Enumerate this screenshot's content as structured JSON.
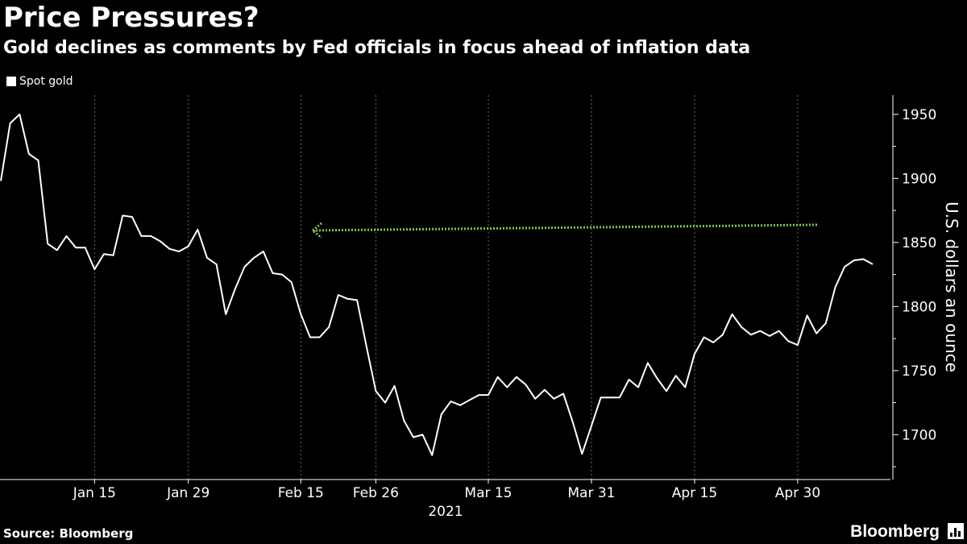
{
  "header": {
    "title": "Price Pressures?",
    "subtitle": "Gold declines as comments by Fed officials in focus ahead of inflation data"
  },
  "legend": {
    "label": "Spot gold"
  },
  "footer": {
    "source": "Source: Bloomberg",
    "brand": "Bloomberg"
  },
  "colors": {
    "background": "#000000",
    "line": "#ffffff",
    "arrow": "#7ec34a",
    "grid": "#6a6a6a"
  },
  "chart_data": {
    "type": "line",
    "title": "Price Pressures?",
    "subtitle": "Gold declines as comments by Fed officials in focus ahead of inflation data",
    "ylabel": "U.S. dollars an ounce",
    "xlabel": "",
    "year_label": "2021",
    "ylim": [
      1665,
      1965
    ],
    "y_ticks": [
      1700,
      1750,
      1800,
      1850,
      1900,
      1950
    ],
    "x_ticks": [
      "Jan 15",
      "Jan 29",
      "Feb 15",
      "Feb 26",
      "Mar 15",
      "Mar 31",
      "Apr 15",
      "Apr 30"
    ],
    "grid": true,
    "y_axis_side": "right",
    "series": [
      {
        "name": "Spot gold",
        "values": [
          1898,
          1943,
          1950,
          1919,
          1914,
          1849,
          1844,
          1855,
          1846,
          1846,
          1829,
          1841,
          1840,
          1871,
          1870,
          1855,
          1855,
          1851,
          1845,
          1843,
          1847,
          1860,
          1838,
          1833,
          1794,
          1814,
          1831,
          1838,
          1843,
          1826,
          1825,
          1819,
          1794,
          1776,
          1776,
          1784,
          1809,
          1806,
          1805,
          1769,
          1734,
          1725,
          1738,
          1711,
          1698,
          1700,
          1684,
          1716,
          1726,
          1723,
          1727,
          1731,
          1731,
          1745,
          1737,
          1745,
          1739,
          1728,
          1735,
          1728,
          1732,
          1710,
          1685,
          1707,
          1729,
          1729,
          1729,
          1743,
          1737,
          1756,
          1744,
          1734,
          1746,
          1737,
          1763,
          1776,
          1772,
          1778,
          1794,
          1784,
          1778,
          1781,
          1777,
          1781,
          1773,
          1770,
          1793,
          1779,
          1787,
          1815,
          1831,
          1836,
          1837,
          1833
        ]
      }
    ],
    "annotations": [
      {
        "type": "arrow",
        "description": "dotted green arrow pointing left",
        "y": 1860
      }
    ]
  }
}
